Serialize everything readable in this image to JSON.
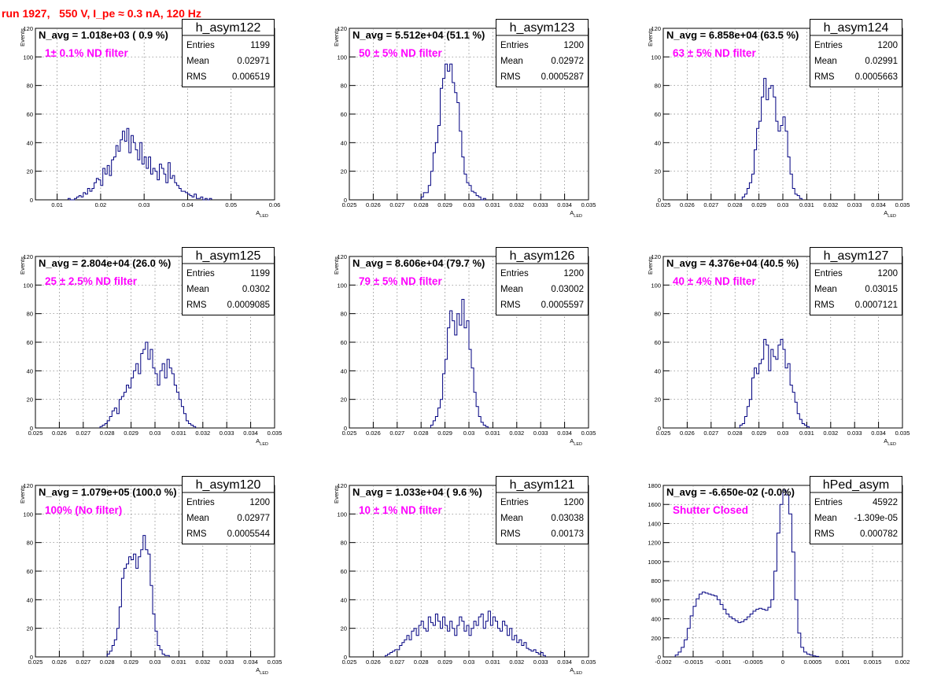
{
  "page": {
    "title": "run 1927,   550 V, I_pe ≈ 0.3 nA, 120 Hz",
    "title_color": "#ff0000",
    "annotation_color": "#ff00ff",
    "line_color": "#000080"
  },
  "chart_data": [
    {
      "type": "histogram",
      "name": "h_asym122",
      "xlabel": "A_LED",
      "ylabel": "Events",
      "xlim": [
        0.005,
        0.06
      ],
      "ylim": [
        0,
        120
      ],
      "xticks": [
        "0.01",
        "0.02",
        "0.03",
        "0.04",
        "0.05",
        "0.06"
      ],
      "xtick_values": [
        0.01,
        0.02,
        0.03,
        0.04,
        0.05,
        0.06
      ],
      "yticks": [
        "0",
        "20",
        "40",
        "60",
        "80",
        "100",
        "120"
      ],
      "header": "N_avg = 1.018e+03 ( 0.9 %)",
      "annotation": "1± 0.1% ND filter",
      "stats": {
        "Entries": "1199",
        "Mean": "0.02971",
        "RMS": "0.006519"
      },
      "grid": true,
      "bin_start": 0.0125,
      "bin_width": 0.0005,
      "counts": [
        1,
        0,
        0,
        1,
        2,
        3,
        2,
        5,
        4,
        8,
        6,
        8,
        12,
        15,
        14,
        10,
        22,
        18,
        24,
        17,
        28,
        30,
        38,
        34,
        42,
        48,
        41,
        50,
        33,
        45,
        40,
        35,
        28,
        40,
        25,
        30,
        22,
        30,
        18,
        22,
        20,
        14,
        25,
        22,
        18,
        12,
        26,
        15,
        17,
        12,
        10,
        8,
        6,
        6,
        5,
        4,
        3,
        2,
        4,
        1,
        1,
        2,
        0,
        1,
        0,
        1
      ]
    },
    {
      "type": "histogram",
      "name": "h_asym123",
      "xlabel": "A_LED",
      "ylabel": "Events",
      "xlim": [
        0.025,
        0.035
      ],
      "ylim": [
        0,
        120
      ],
      "xticks": [
        "0.025",
        "0.026",
        "0.027",
        "0.028",
        "0.029",
        "0.03",
        "0.031",
        "0.032",
        "0.033",
        "0.034",
        "0.035"
      ],
      "xtick_values": [
        0.025,
        0.026,
        0.027,
        0.028,
        0.029,
        0.03,
        0.031,
        0.032,
        0.033,
        0.034,
        0.035
      ],
      "yticks": [
        "0",
        "20",
        "40",
        "60",
        "80",
        "100",
        "120"
      ],
      "header": "N_avg = 5.512e+04 (51.1 %)",
      "annotation": "50 ± 5% ND filter",
      "stats": {
        "Entries": "1200",
        "Mean": "0.02972",
        "RMS": "0.0005287"
      },
      "grid": true,
      "bin_start": 0.028,
      "bin_width": 0.0001,
      "counts": [
        2,
        5,
        5,
        10,
        20,
        33,
        40,
        52,
        78,
        85,
        95,
        90,
        95,
        82,
        75,
        68,
        48,
        30,
        18,
        12,
        10,
        6,
        5,
        3,
        2,
        0,
        1
      ]
    },
    {
      "type": "histogram",
      "name": "h_asym124",
      "xlabel": "A_LED",
      "ylabel": "Events",
      "xlim": [
        0.025,
        0.035
      ],
      "ylim": [
        0,
        120
      ],
      "xticks": [
        "0.025",
        "0.026",
        "0.027",
        "0.028",
        "0.029",
        "0.03",
        "0.031",
        "0.032",
        "0.033",
        "0.034",
        "0.035"
      ],
      "xtick_values": [
        0.025,
        0.026,
        0.027,
        0.028,
        0.029,
        0.03,
        0.031,
        0.032,
        0.033,
        0.034,
        0.035
      ],
      "yticks": [
        "0",
        "20",
        "40",
        "60",
        "80",
        "100",
        "120"
      ],
      "header": "N_avg = 6.858e+04 (63.5 %)",
      "annotation": "63 ± 5% ND filter",
      "stats": {
        "Entries": "1200",
        "Mean": "0.02991",
        "RMS": "0.0005663"
      },
      "grid": true,
      "bin_start": 0.0283,
      "bin_width": 0.0001,
      "counts": [
        2,
        4,
        8,
        12,
        18,
        35,
        50,
        55,
        72,
        85,
        70,
        78,
        80,
        72,
        55,
        48,
        52,
        58,
        48,
        30,
        18,
        8,
        4,
        3,
        1
      ]
    },
    {
      "type": "histogram",
      "name": "h_asym125",
      "xlabel": "A_LED",
      "ylabel": "Events",
      "xlim": [
        0.025,
        0.035
      ],
      "ylim": [
        0,
        120
      ],
      "xticks": [
        "0.025",
        "0.026",
        "0.027",
        "0.028",
        "0.029",
        "0.03",
        "0.031",
        "0.032",
        "0.033",
        "0.034",
        "0.035"
      ],
      "xtick_values": [
        0.025,
        0.026,
        0.027,
        0.028,
        0.029,
        0.03,
        0.031,
        0.032,
        0.033,
        0.034,
        0.035
      ],
      "yticks": [
        "0",
        "20",
        "40",
        "60",
        "80",
        "100",
        "120"
      ],
      "header": "N_avg = 2.804e+04 (26.0 %)",
      "annotation": "25 ± 2.5% ND filter",
      "stats": {
        "Entries": "1199",
        "Mean": "0.0302",
        "RMS": "0.0009085"
      },
      "grid": true,
      "bin_start": 0.0277,
      "bin_width": 0.0001,
      "counts": [
        1,
        2,
        3,
        5,
        8,
        12,
        14,
        10,
        20,
        22,
        25,
        30,
        28,
        35,
        40,
        45,
        38,
        52,
        55,
        60,
        48,
        55,
        42,
        38,
        30,
        40,
        45,
        35,
        48,
        42,
        38,
        30,
        25,
        20,
        15,
        10,
        5,
        3,
        2,
        1
      ]
    },
    {
      "type": "histogram",
      "name": "h_asym126",
      "xlabel": "A_LED",
      "ylabel": "Events",
      "xlim": [
        0.025,
        0.035
      ],
      "ylim": [
        0,
        120
      ],
      "xticks": [
        "0.025",
        "0.026",
        "0.027",
        "0.028",
        "0.029",
        "0.03",
        "0.031",
        "0.032",
        "0.033",
        "0.034",
        "0.035"
      ],
      "xtick_values": [
        0.025,
        0.026,
        0.027,
        0.028,
        0.029,
        0.03,
        0.031,
        0.032,
        0.033,
        0.034,
        0.035
      ],
      "yticks": [
        "0",
        "20",
        "40",
        "60",
        "80",
        "100",
        "120"
      ],
      "header": "N_avg = 8.606e+04 (79.7 %)",
      "annotation": "79 ± 5% ND filter",
      "stats": {
        "Entries": "1200",
        "Mean": "0.03002",
        "RMS": "0.0005597"
      },
      "grid": true,
      "bin_start": 0.0284,
      "bin_width": 0.0001,
      "counts": [
        2,
        5,
        8,
        14,
        20,
        38,
        48,
        70,
        82,
        75,
        65,
        80,
        72,
        90,
        70,
        75,
        55,
        42,
        25,
        15,
        8,
        4,
        2,
        1
      ]
    },
    {
      "type": "histogram",
      "name": "h_asym127",
      "xlabel": "A_LED",
      "ylabel": "Events",
      "xlim": [
        0.025,
        0.035
      ],
      "ylim": [
        0,
        120
      ],
      "xticks": [
        "0.025",
        "0.026",
        "0.027",
        "0.028",
        "0.029",
        "0.03",
        "0.031",
        "0.032",
        "0.033",
        "0.034",
        "0.035"
      ],
      "xtick_values": [
        0.025,
        0.026,
        0.027,
        0.028,
        0.029,
        0.03,
        0.031,
        0.032,
        0.033,
        0.034,
        0.035
      ],
      "yticks": [
        "0",
        "20",
        "40",
        "60",
        "80",
        "100",
        "120"
      ],
      "header": "N_avg = 4.376e+04 (40.5 %)",
      "annotation": "40 ± 4% ND filter",
      "stats": {
        "Entries": "1200",
        "Mean": "0.03015",
        "RMS": "0.0007121"
      },
      "grid": true,
      "bin_start": 0.0282,
      "bin_width": 0.0001,
      "counts": [
        2,
        3,
        8,
        15,
        20,
        35,
        42,
        38,
        45,
        48,
        62,
        58,
        40,
        55,
        50,
        48,
        58,
        62,
        55,
        42,
        45,
        30,
        25,
        18,
        10,
        6,
        3,
        2,
        1
      ]
    },
    {
      "type": "histogram",
      "name": "h_asym120",
      "xlabel": "A_LED",
      "ylabel": "Events",
      "xlim": [
        0.025,
        0.035
      ],
      "ylim": [
        0,
        120
      ],
      "xticks": [
        "0.025",
        "0.026",
        "0.027",
        "0.028",
        "0.029",
        "0.03",
        "0.031",
        "0.032",
        "0.033",
        "0.034",
        "0.035"
      ],
      "xtick_values": [
        0.025,
        0.026,
        0.027,
        0.028,
        0.029,
        0.03,
        0.031,
        0.032,
        0.033,
        0.034,
        0.035
      ],
      "yticks": [
        "0",
        "20",
        "40",
        "60",
        "80",
        "100",
        "120"
      ],
      "header": "N_avg = 1.079e+05 (100.0 %)",
      "annotation": "100% (No filter)",
      "stats": {
        "Entries": "1200",
        "Mean": "0.02977",
        "RMS": "0.0005544"
      },
      "grid": true,
      "bin_start": 0.028,
      "bin_width": 0.0001,
      "counts": [
        2,
        4,
        8,
        12,
        20,
        35,
        55,
        62,
        65,
        70,
        68,
        72,
        62,
        70,
        75,
        85,
        75,
        72,
        50,
        30,
        18,
        8,
        5,
        2,
        1,
        1
      ]
    },
    {
      "type": "histogram",
      "name": "h_asym121",
      "xlabel": "A_LED",
      "ylabel": "Events",
      "xlim": [
        0.025,
        0.035
      ],
      "ylim": [
        0,
        120
      ],
      "xticks": [
        "0.025",
        "0.026",
        "0.027",
        "0.028",
        "0.029",
        "0.03",
        "0.031",
        "0.032",
        "0.033",
        "0.034",
        "0.035"
      ],
      "xtick_values": [
        0.025,
        0.026,
        0.027,
        0.028,
        0.029,
        0.03,
        0.031,
        0.032,
        0.033,
        0.034,
        0.035
      ],
      "yticks": [
        "0",
        "20",
        "40",
        "60",
        "80",
        "100",
        "120"
      ],
      "header": "N_avg = 1.033e+04 ( 9.6 %)",
      "annotation": "10 ± 1% ND filter",
      "stats": {
        "Entries": "1200",
        "Mean": "0.03038",
        "RMS": "0.00173"
      },
      "grid": true,
      "bin_start": 0.0265,
      "bin_width": 0.0001,
      "counts": [
        1,
        2,
        3,
        4,
        5,
        5,
        8,
        10,
        12,
        15,
        12,
        18,
        20,
        15,
        22,
        25,
        20,
        18,
        28,
        24,
        22,
        30,
        25,
        20,
        28,
        22,
        18,
        25,
        20,
        15,
        22,
        28,
        25,
        18,
        22,
        15,
        20,
        25,
        22,
        28,
        30,
        20,
        25,
        32,
        22,
        28,
        25,
        20,
        18,
        25,
        22,
        15,
        20,
        12,
        15,
        10,
        12,
        8,
        10,
        6,
        5,
        4,
        5,
        3,
        2,
        3,
        1
      ]
    },
    {
      "type": "histogram",
      "name": "hPed_asym",
      "xlabel": "",
      "ylabel": "",
      "xlim": [
        -0.002,
        0.002
      ],
      "ylim": [
        0,
        1800
      ],
      "xticks": [
        "-0.002",
        "-0.0015",
        "-0.001",
        "-0.0005",
        "0",
        "0.0005",
        "0.001",
        "0.0015",
        "0.002"
      ],
      "xtick_values": [
        -0.002,
        -0.0015,
        -0.001,
        -0.0005,
        0,
        0.0005,
        0.001,
        0.0015,
        0.002
      ],
      "yticks": [
        "0",
        "200",
        "400",
        "600",
        "800",
        "1000",
        "1200",
        "1400",
        "1600",
        "1800"
      ],
      "header": "N_avg = -6.650e-02 (-0.0%)",
      "annotation": "Shutter Closed",
      "stats": {
        "Entries": "45922",
        "Mean": "-1.309e-05",
        "RMS": "0.000782"
      },
      "grid": true,
      "bin_start": -0.0018,
      "bin_width": 5e-05,
      "counts": [
        20,
        50,
        100,
        180,
        300,
        430,
        530,
        610,
        660,
        680,
        670,
        660,
        650,
        640,
        600,
        550,
        500,
        450,
        420,
        400,
        380,
        360,
        370,
        390,
        420,
        450,
        480,
        500,
        510,
        500,
        490,
        520,
        600,
        900,
        1300,
        1600,
        1750,
        1700,
        1500,
        1100,
        600,
        250,
        100,
        50,
        30,
        20,
        10,
        5
      ]
    }
  ]
}
